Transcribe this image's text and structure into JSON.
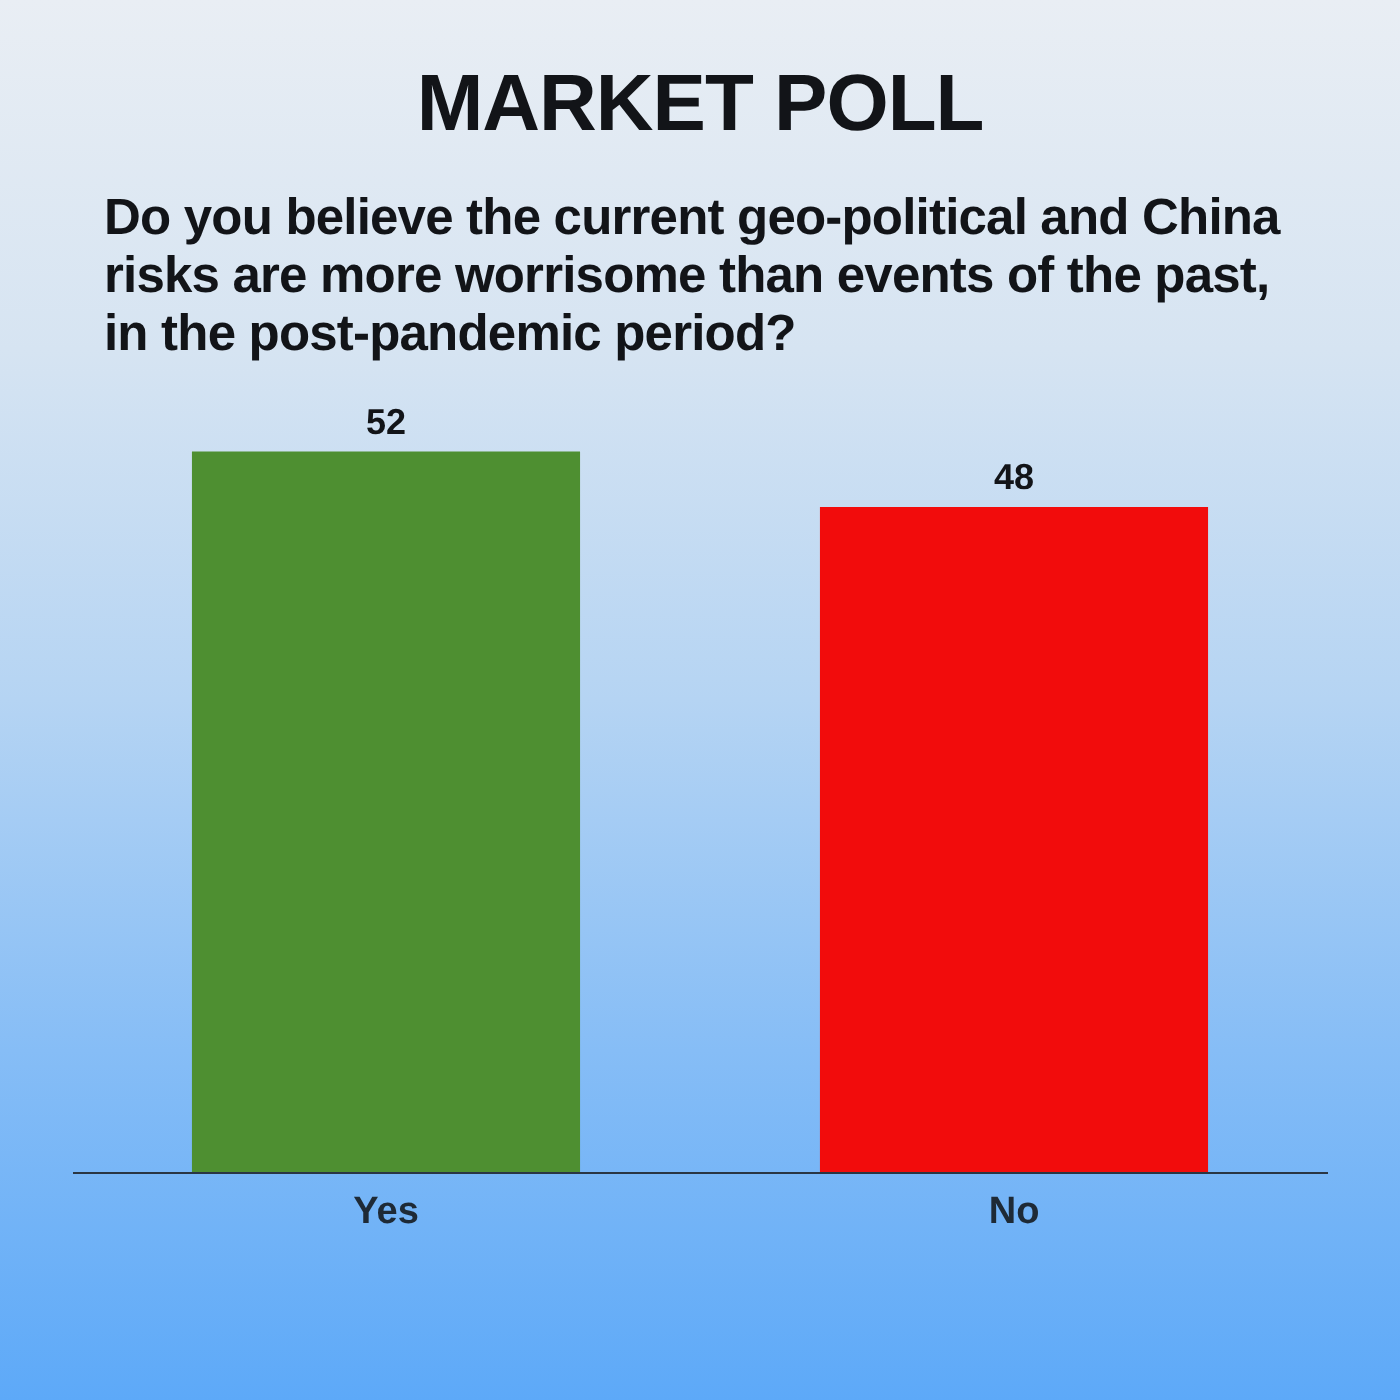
{
  "chart_data": {
    "type": "bar",
    "title": "MARKET POLL",
    "subtitle": "Do you believe the current geo-political and China risks are more worrisome than events of the past, in the post-pandemic period?",
    "categories": [
      "Yes",
      "No"
    ],
    "values": [
      52,
      48
    ],
    "colors": [
      "#4e8f31",
      "#f20c0c"
    ],
    "data_labels": true
  }
}
